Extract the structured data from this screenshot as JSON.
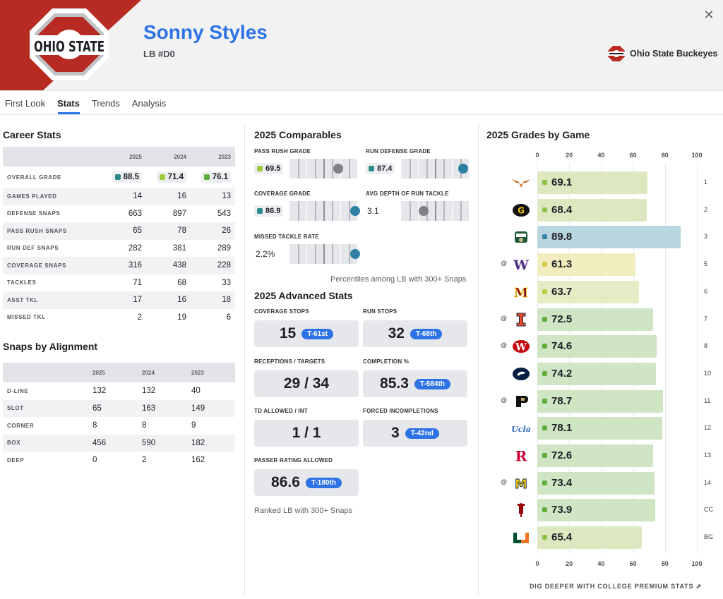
{
  "colors": {
    "accent": "#2e73e6",
    "team_red": "#b82b23",
    "grade_green": "#5fae3f",
    "grade_lightgreen": "#9fcb3d",
    "grade_teal": "#2d8a8a",
    "grade_yellow": "#d6c84b",
    "grade_blue": "#3a86a6"
  },
  "header": {
    "player_name": "Sonny Styles",
    "position": "LB #D0",
    "team_name": "Ohio State Buckeyes",
    "logo_text": "OHIO STATE"
  },
  "tabs": [
    {
      "label": "First Look"
    },
    {
      "label": "Stats"
    },
    {
      "label": "Trends"
    },
    {
      "label": "Analysis"
    }
  ],
  "career_stats": {
    "title": "Career Stats",
    "years": [
      "2025",
      "2024",
      "2023"
    ],
    "overall_grade": {
      "label": "OVERALL GRADE",
      "values": [
        "88.5",
        "71.4",
        "76.1"
      ]
    },
    "rows": [
      {
        "label": "GAMES PLAYED",
        "values": [
          "14",
          "16",
          "13"
        ]
      },
      {
        "label": "DEFENSE SNAPS",
        "values": [
          "663",
          "897",
          "543"
        ]
      },
      {
        "label": "PASS RUSH SNAPS",
        "values": [
          "65",
          "78",
          "26"
        ]
      },
      {
        "label": "RUN DEF SNAPS",
        "values": [
          "282",
          "381",
          "289"
        ]
      },
      {
        "label": "COVERAGE SNAPS",
        "values": [
          "316",
          "438",
          "228"
        ]
      },
      {
        "label": "TACKLES",
        "values": [
          "71",
          "68",
          "33"
        ]
      },
      {
        "label": "ASST TKL",
        "values": [
          "17",
          "16",
          "18"
        ]
      },
      {
        "label": "MISSED TKL",
        "values": [
          "2",
          "19",
          "6"
        ]
      }
    ]
  },
  "alignment": {
    "title": "Snaps by Alignment",
    "years": [
      "2025",
      "2024",
      "2023"
    ],
    "rows": [
      {
        "label": "D-LINE",
        "values": [
          "132",
          "132",
          "40"
        ]
      },
      {
        "label": "SLOT",
        "values": [
          "65",
          "163",
          "149"
        ]
      },
      {
        "label": "CORNER",
        "values": [
          "8",
          "8",
          "9"
        ]
      },
      {
        "label": "BOX",
        "values": [
          "456",
          "590",
          "182"
        ]
      },
      {
        "label": "DEEP",
        "values": [
          "0",
          "2",
          "162"
        ]
      }
    ]
  },
  "comparables": {
    "title": "2025 Comparables",
    "items": [
      {
        "label": "PASS RUSH GRADE",
        "value": "69.5",
        "grade": true,
        "percentile": 0.72
      },
      {
        "label": "RUN DEFENSE GRADE",
        "value": "87.4",
        "grade": true,
        "percentile": 0.92
      },
      {
        "label": "COVERAGE GRADE",
        "value": "86.9",
        "grade": true,
        "percentile": 0.97
      },
      {
        "label": "AVG DEPTH OF RUN TACKLE",
        "value": "3.1",
        "grade": false,
        "percentile": 0.33
      },
      {
        "label": "MISSED TACKLE RATE",
        "value": "2.2%",
        "grade": false,
        "percentile": 0.97
      }
    ],
    "footnote": "Percentiles among LB with 300+ Snaps"
  },
  "advanced": {
    "title": "2025 Advanced Stats",
    "items": [
      {
        "label": "COVERAGE STOPS",
        "value": "15",
        "rank": "T-61st"
      },
      {
        "label": "RUN STOPS",
        "value": "32",
        "rank": "T-68th"
      },
      {
        "label": "RECEPTIONS / TARGETS",
        "value": "29 / 34",
        "rank": ""
      },
      {
        "label": "COMPLETION %",
        "value": "85.3",
        "rank": "T-584th"
      },
      {
        "label": "TD ALLOWED / INT",
        "value": "1 / 1",
        "rank": ""
      },
      {
        "label": "FORCED INCOMPLETIONS",
        "value": "3",
        "rank": "T-42nd"
      },
      {
        "label": "PASSER RATING ALLOWED",
        "value": "86.6",
        "rank": "T-180th"
      }
    ],
    "footnote": "Ranked LB with 300+ Snaps"
  },
  "grades_by_game": {
    "title": "2025 Grades by Game",
    "axis_ticks": [
      "0",
      "20",
      "40",
      "60",
      "80",
      "100"
    ],
    "premium_link": "DIG DEEPER WITH COLLEGE PREMIUM STATS"
  },
  "chart_data": {
    "type": "bar",
    "title": "2025 Grades by Game",
    "orientation": "horizontal",
    "xlim": [
      0,
      100
    ],
    "categories": [
      "1",
      "2",
      "3",
      "5",
      "6",
      "7",
      "8",
      "10",
      "11",
      "12",
      "13",
      "14",
      "CC",
      "BG"
    ],
    "away": [
      false,
      false,
      false,
      true,
      false,
      true,
      true,
      false,
      true,
      false,
      false,
      true,
      false,
      false
    ],
    "opponent_icons": [
      "longhorn-icon",
      "grambling-g-icon",
      "ohio-bobcats-icon",
      "washington-w-icon",
      "minnesota-m-icon",
      "illinois-i-icon",
      "wisconsin-w-icon",
      "penn-state-lion-icon",
      "purdue-p-icon",
      "ucla-script-icon",
      "rutgers-r-icon",
      "michigan-m-icon",
      "indiana-iu-icon",
      "miami-u-icon"
    ],
    "values": [
      69.1,
      68.4,
      89.8,
      61.3,
      63.7,
      72.5,
      74.6,
      74.2,
      78.7,
      78.1,
      72.6,
      73.4,
      73.9,
      65.4
    ]
  }
}
